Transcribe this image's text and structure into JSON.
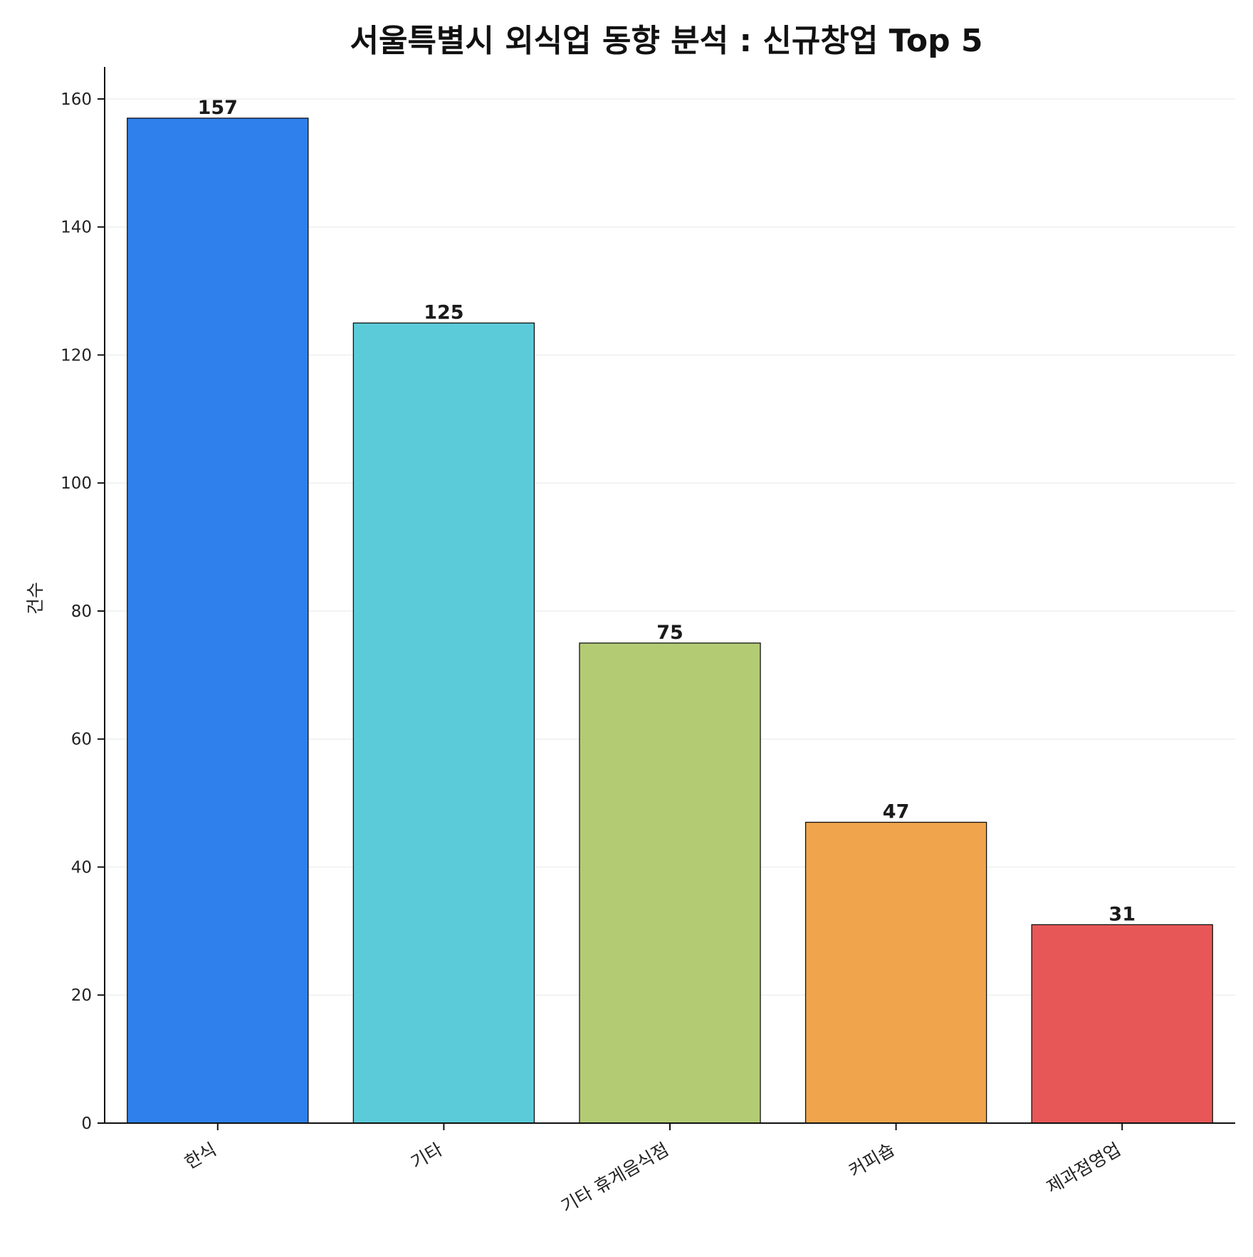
{
  "chart_data": {
    "type": "bar",
    "title": "서울특별시 외식업 동향 분석 : 신규창업 Top 5",
    "xlabel": "",
    "ylabel": "건수",
    "categories": [
      "한식",
      "기타",
      "기타 휴게음식점",
      "커피숍",
      "제과점영업"
    ],
    "values": [
      157,
      125,
      75,
      47,
      31
    ],
    "colors": [
      "#2f80ed",
      "#5ccbd9",
      "#b3cc74",
      "#f0a54c",
      "#e85757"
    ],
    "ylim": [
      0,
      165
    ],
    "yticks": [
      0,
      20,
      40,
      60,
      80,
      100,
      120,
      140,
      160
    ],
    "ytick_labels": [
      "0",
      "20",
      "40",
      "60",
      "80",
      "100",
      "120",
      "140",
      "160"
    ],
    "grid": "y",
    "legend": "none"
  }
}
